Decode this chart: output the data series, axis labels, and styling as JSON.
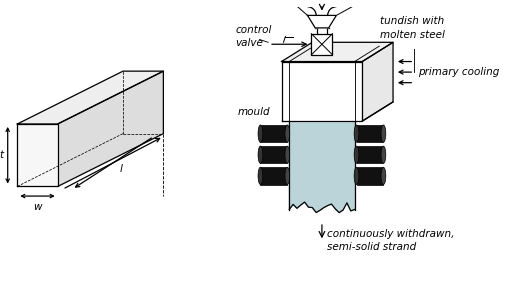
{
  "bg_color": "#ffffff",
  "line_color": "#000000",
  "strand_color": "#aecdd4",
  "roller_color": "#1a1a1a",
  "label_fontsize": 7.5,
  "label_style": "italic",
  "labels": {
    "tundish": "tundish with\nmolten steel",
    "control_valve": "control\nvalve",
    "mould": "mould",
    "primary_cooling": "primary cooling",
    "strand": "continuously withdrawn,\nsemi-solid strand",
    "l": "l",
    "t": "t",
    "w": "w"
  }
}
